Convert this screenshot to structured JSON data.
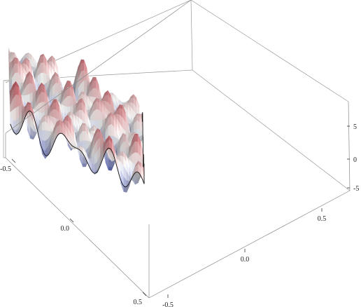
{
  "chart_data": {
    "type": "surface3d",
    "title": "",
    "x_ticks": [
      {
        "value": -0.5,
        "label": "-0.5"
      },
      {
        "value": 0.0,
        "label": "0.0"
      },
      {
        "value": 0.5,
        "label": "0.5"
      }
    ],
    "y_ticks": [
      {
        "value": -0.5,
        "label": "-0.5"
      },
      {
        "value": 0.0,
        "label": "0.0"
      },
      {
        "value": 0.5,
        "label": "0.5"
      }
    ],
    "z_ticks": [
      {
        "value": -5,
        "label": "-5"
      },
      {
        "value": 0,
        "label": "0"
      },
      {
        "value": 5,
        "label": "5"
      }
    ],
    "x_range": [
      -0.6,
      0.6
    ],
    "y_range": [
      -0.6,
      0.6
    ],
    "z_range": [
      -7,
      7
    ],
    "grid": false,
    "box": true,
    "color_scheme": {
      "low": "#3b4bb4",
      "mid": "#f2f2f0",
      "high": "#b4303a"
    }
  }
}
